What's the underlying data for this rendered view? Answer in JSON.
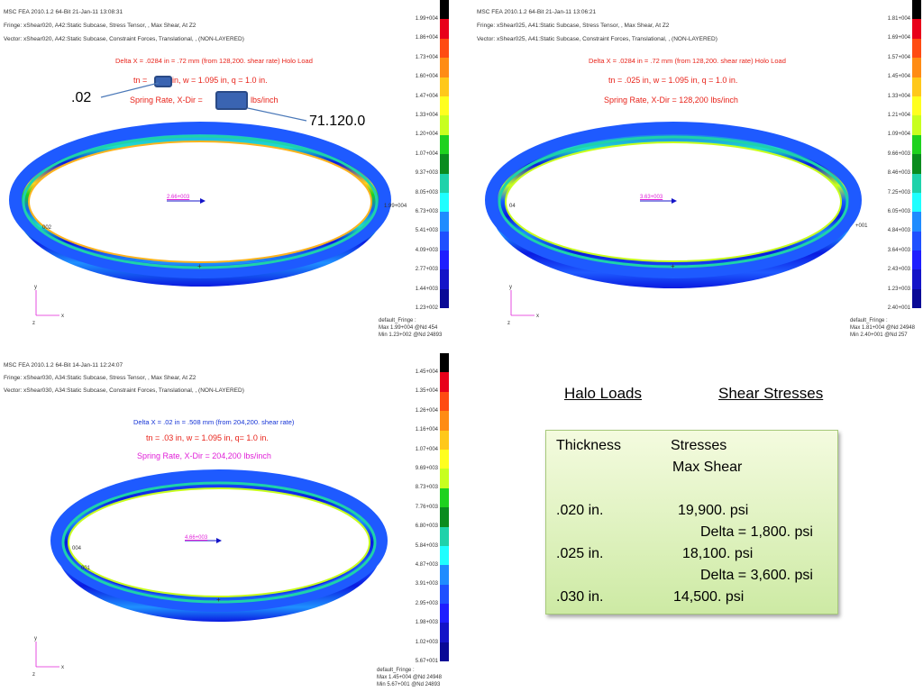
{
  "panels": [
    {
      "header": [
        "MSC FEA 2010.1.2 64-Bit 21-Jan-11 13:08:31",
        "Fringe: xShear020, A42:Static Subcase, Stress Tensor, , Max Shear, At Z2",
        "Vector: xShear020, A42:Static Subcase, Constraint Forces, Translational, , (NON-LAYERED)"
      ],
      "title_lines": [
        "Delta X = .0284 in = .72 mm (from 128,200. shear rate) Holo Load",
        "tn =",
        "in, w = 1.095 in, q = 1.0 in.",
        "Spring Rate, X-Dir =",
        "lbs/inch"
      ],
      "scale_ticks": [
        "1.99+004",
        "1.86+004",
        "1.73+004",
        "1.60+004",
        "1.47+004",
        "1.33+004",
        "1.20+004",
        "1.07+004",
        "9.37+003",
        "8.05+003",
        "6.73+003",
        "5.41+003",
        "4.09+003",
        "2.77+003",
        "1.44+003",
        "1.23+002"
      ],
      "legend": [
        "default_Fringe :",
        "Max 1.99+004 @Nd 454",
        "Min 1.23+002 @Nd 24893"
      ],
      "ring_labels": [
        "2.66+003",
        "1.99+004",
        "002"
      ]
    },
    {
      "header": [
        "MSC FEA 2010.1.2 64-Bit 21-Jan-11 13:06:21",
        "Fringe: xShear025, A41:Static Subcase, Stress Tensor, , Max Shear, At Z2",
        "Vector: xShear025, A41:Static Subcase, Constraint Forces, Translational, , (NON-LAYERED)"
      ],
      "title_lines": [
        "Delta X = .0284 in = .72 mm (from 128,200. shear rate) Holo Load",
        "tn = .025 in, w = 1.095 in, q = 1.0 in.",
        "Spring Rate, X-Dir = 128,200 lbs/inch"
      ],
      "scale_ticks": [
        "1.81+004",
        "1.69+004",
        "1.57+004",
        "1.45+004",
        "1.33+004",
        "1.21+004",
        "1.09+004",
        "9.66+003",
        "8.46+003",
        "7.25+003",
        "6.05+003",
        "4.84+003",
        "3.64+003",
        "2.43+003",
        "1.23+003",
        "2.40+001"
      ],
      "legend": [
        "default_Fringe :",
        "Max 1.81+004 @Nd 24948",
        "Min 2.40+001 @Nd 257"
      ],
      "ring_labels": [
        "3.63+003",
        "+001",
        "04"
      ]
    },
    {
      "header": [
        "MSC FEA 2010.1.2 64-Bit 14-Jan-11 12:24:07",
        "Fringe: xShear030, A34:Static Subcase, Stress Tensor, , Max Shear, At Z2",
        "Vector: xShear030, A34:Static Subcase, Constraint Forces, Translational, , (NON-LAYERED)"
      ],
      "title_lines": [
        "Delta X = .02 in = .508 mm (from 204,200. shear rate)",
        "tn = .03 in, w = 1.095 in, q= 1.0 in.",
        "Spring Rate, X-Dir = 204,200 lbs/inch"
      ],
      "scale_ticks": [
        "1.45+004",
        "1.35+004",
        "1.26+004",
        "1.16+004",
        "1.07+004",
        "9.69+003",
        "8.73+003",
        "7.76+003",
        "6.80+003",
        "5.84+003",
        "4.87+003",
        "3.91+003",
        "2.95+003",
        "1.98+003",
        "1.02+003",
        "5.67+001"
      ],
      "legend": [
        "default_Fringe :",
        "Max 1.45+004 @Nd 24948",
        "Min 5.67+001 @Nd 24893"
      ],
      "ring_labels": [
        "4.66+003",
        "004",
        "001"
      ]
    }
  ],
  "annotations": {
    "thickness": ".02",
    "spring_rate": "71.120.0"
  },
  "summary": {
    "heading_left": "Halo Loads",
    "heading_right": "Shear Stresses",
    "col_thickness": "Thickness",
    "col_stresses": "Stresses",
    "col_subheader": "Max Shear",
    "rows": [
      {
        "thickness": ".020 in.",
        "stress": "19,900. psi",
        "delta": "Delta = 1,800. psi"
      },
      {
        "thickness": ".025 in.",
        "stress": "18,100. psi",
        "delta": "Delta = 3,600. psi"
      },
      {
        "thickness": ".030 in.",
        "stress": "14,500. psi"
      }
    ]
  },
  "colors": {
    "scale": [
      "#000000",
      "#e8001a",
      "#ff4b12",
      "#ff8c14",
      "#ffc81a",
      "#ffff1e",
      "#c8ff1e",
      "#1ed21e",
      "#0a8c1e",
      "#1ed2aa",
      "#1effff",
      "#1e8cff",
      "#1e50ff",
      "#1e1eff",
      "#1414c8",
      "#0a0a96"
    ],
    "title_red": "#e8231a",
    "title_blue": "#1433d6",
    "title_magenta": "#e020d8",
    "box_fill": "#3a64b2",
    "table_bg": "#d8efb2"
  }
}
